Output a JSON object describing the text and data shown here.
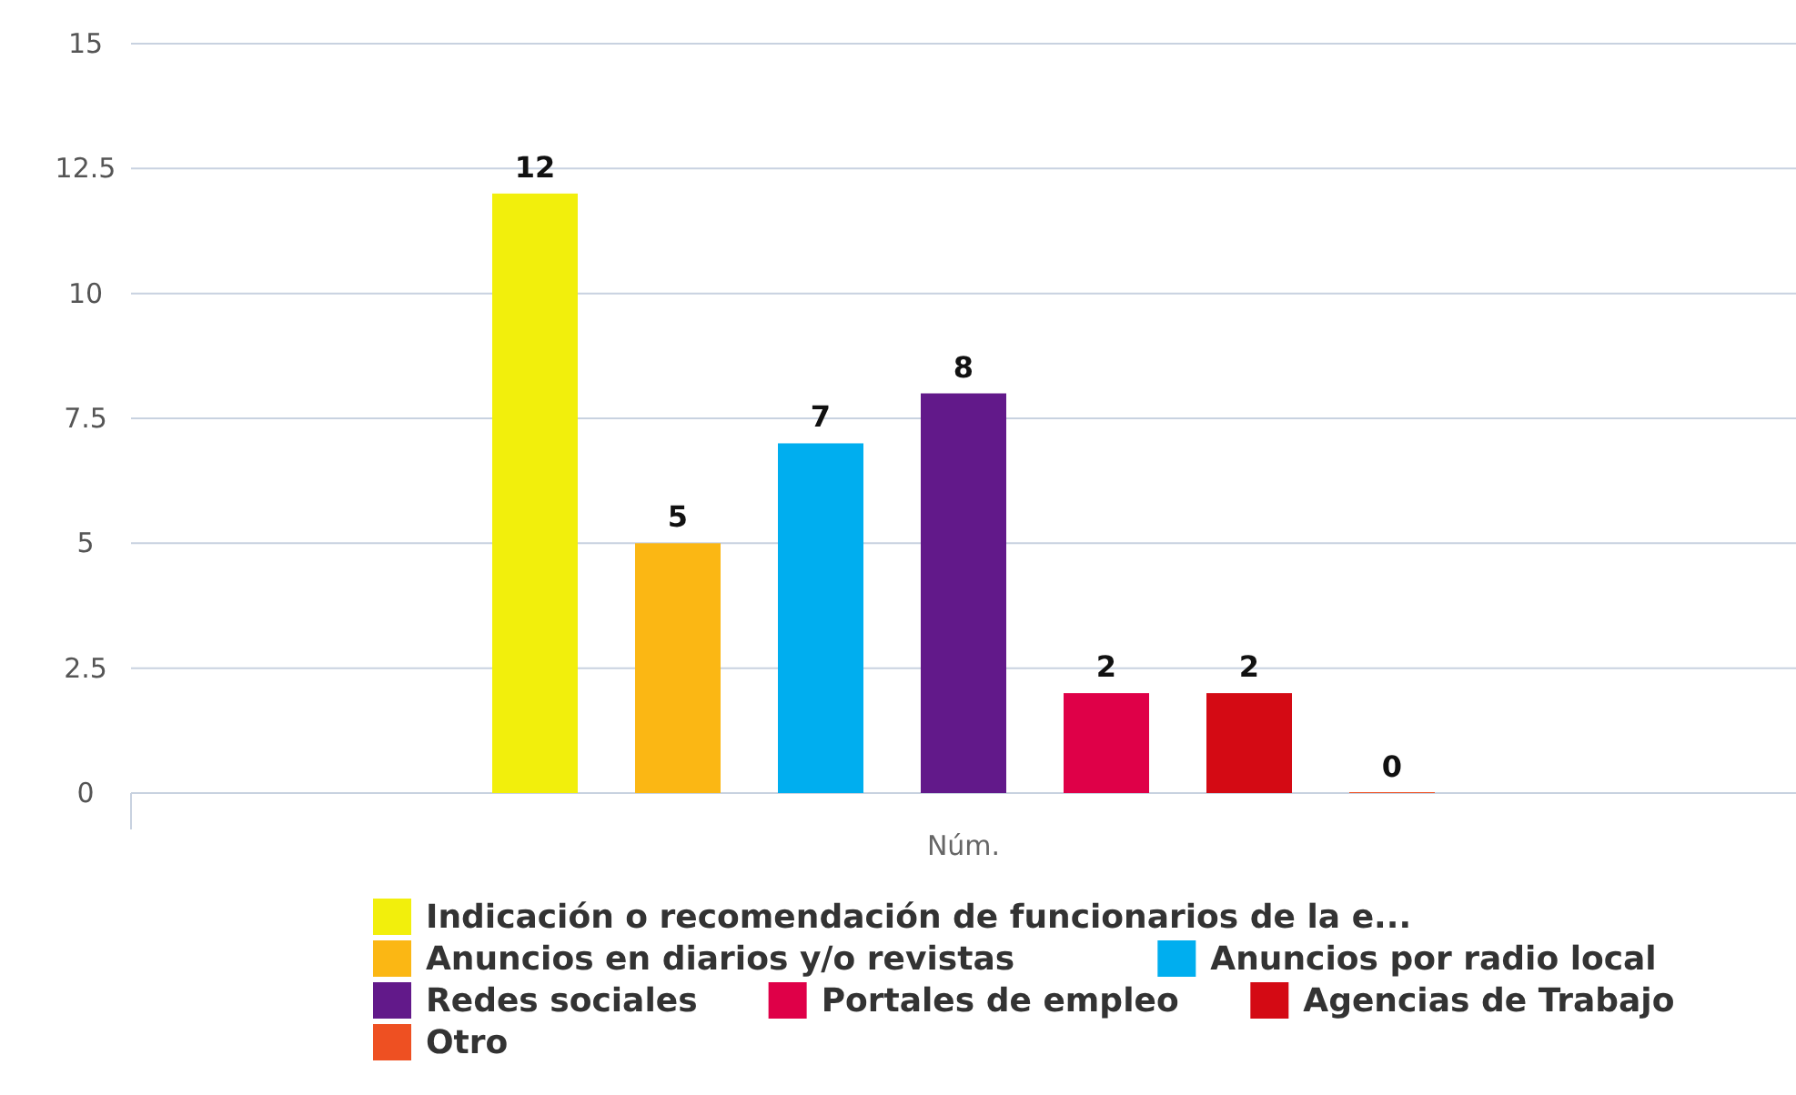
{
  "chart_data": {
    "type": "bar",
    "categories": [
      "Núm."
    ],
    "series": [
      {
        "name": "Indicación o recomendación de funcionarios de la e...",
        "color": "#f2ef0c",
        "values": [
          12
        ]
      },
      {
        "name": "Anuncios en diarios y/o revistas",
        "color": "#fbb714",
        "values": [
          5
        ]
      },
      {
        "name": "Anuncios por radio local",
        "color": "#00aeef",
        "values": [
          7
        ]
      },
      {
        "name": "Redes sociales",
        "color": "#62198a",
        "values": [
          8
        ]
      },
      {
        "name": "Portales de empleo",
        "color": "#df0048",
        "values": [
          2
        ]
      },
      {
        "name": "Agencias de Trabajo",
        "color": "#d40a14",
        "values": [
          2
        ]
      },
      {
        "name": "Otro",
        "color": "#ee5022",
        "values": [
          0
        ]
      }
    ],
    "ylim": [
      0,
      15
    ],
    "yticks": [
      0,
      2.5,
      5,
      7.5,
      10,
      12.5,
      15
    ],
    "grid": "y",
    "data_labels": true,
    "legend": "bottom"
  }
}
